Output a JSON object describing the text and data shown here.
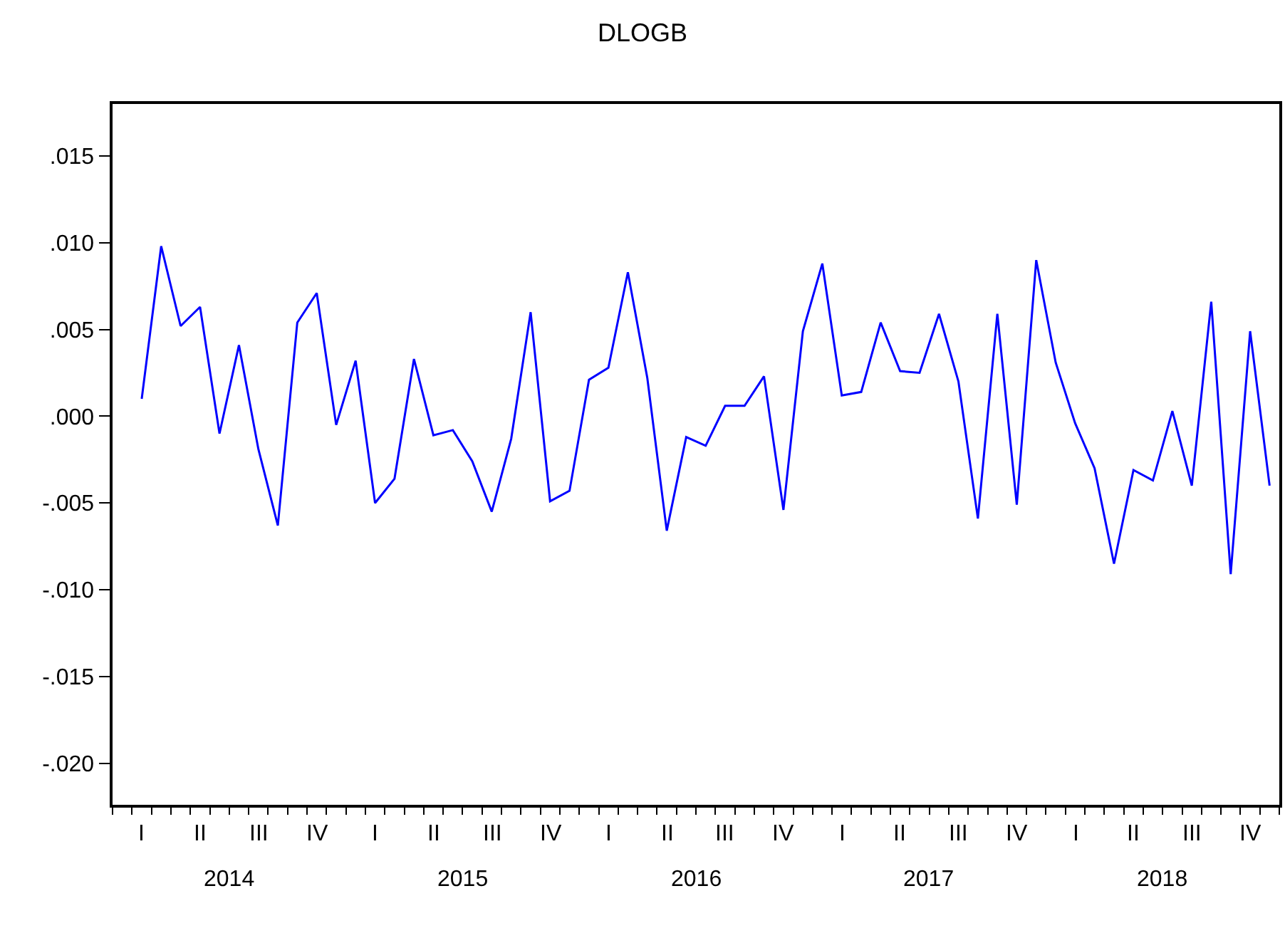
{
  "chart_data": {
    "type": "line",
    "title": "DLOGB",
    "categories": [
      null,
      null,
      null,
      null,
      null,
      null,
      null,
      null,
      null,
      null,
      null,
      null,
      null,
      null,
      null,
      null,
      null,
      null,
      null,
      null,
      null,
      null,
      null,
      null,
      null,
      null,
      null,
      null,
      null,
      null,
      null,
      null,
      null,
      null,
      null,
      null,
      null,
      null,
      null,
      null,
      null,
      null,
      null,
      null,
      null,
      null,
      null,
      null,
      null,
      null,
      null,
      null,
      null,
      null,
      null,
      null,
      null,
      null,
      null
    ],
    "series": [
      {
        "color": "#0000ff",
        "values": [
          0.001,
          0.0098,
          0.0052,
          0.0063,
          -0.001,
          0.0041,
          -0.0019,
          -0.0063,
          0.0054,
          0.0071,
          -0.0005,
          0.0032,
          -0.005,
          -0.0036,
          0.0033,
          -0.0011,
          -0.0008,
          -0.0026,
          -0.0055,
          -0.0013,
          0.006,
          -0.0049,
          -0.0043,
          0.0021,
          0.0028,
          0.0083,
          0.0022,
          -0.0066,
          -0.0012,
          -0.0017,
          0.0006,
          0.0006,
          0.0023,
          -0.0054,
          0.0049,
          0.0088,
          0.0012,
          0.0014,
          0.0054,
          0.0026,
          0.0025,
          0.0059,
          0.002,
          -0.0059,
          0.0059,
          -0.0051,
          0.009,
          0.0031,
          -0.0004,
          -0.003,
          -0.0085,
          -0.0031,
          -0.0037,
          0.0003,
          -0.004,
          0.0066,
          -0.0091,
          0.0049,
          -0.004
        ]
      }
    ],
    "annotations": [
      "I",
      "II",
      "III",
      "IV",
      "I",
      "II",
      "III",
      "IV",
      "I",
      "II",
      "III",
      "IV",
      "I",
      "II",
      "III",
      "IV",
      "I",
      "II",
      "III",
      "IV",
      "2014",
      "2015",
      "2016",
      "2017",
      "2018"
    ],
    "ylim": [
      -0.0224,
      0.018
    ],
    "yticks": [
      {
        "value": 0.015,
        "label": ".015"
      },
      {
        "value": 0.01,
        "label": ".010"
      },
      {
        "value": 0.005,
        "label": ".005"
      },
      {
        "value": 0.0,
        "label": ".000"
      },
      {
        "value": -0.005,
        "label": "-.005"
      },
      {
        "value": -0.01,
        "label": "-.010"
      },
      {
        "value": -0.015,
        "label": "-.015"
      },
      {
        "value": -0.02,
        "label": "-.020"
      }
    ],
    "marker": "none",
    "line_style": "solid"
  }
}
